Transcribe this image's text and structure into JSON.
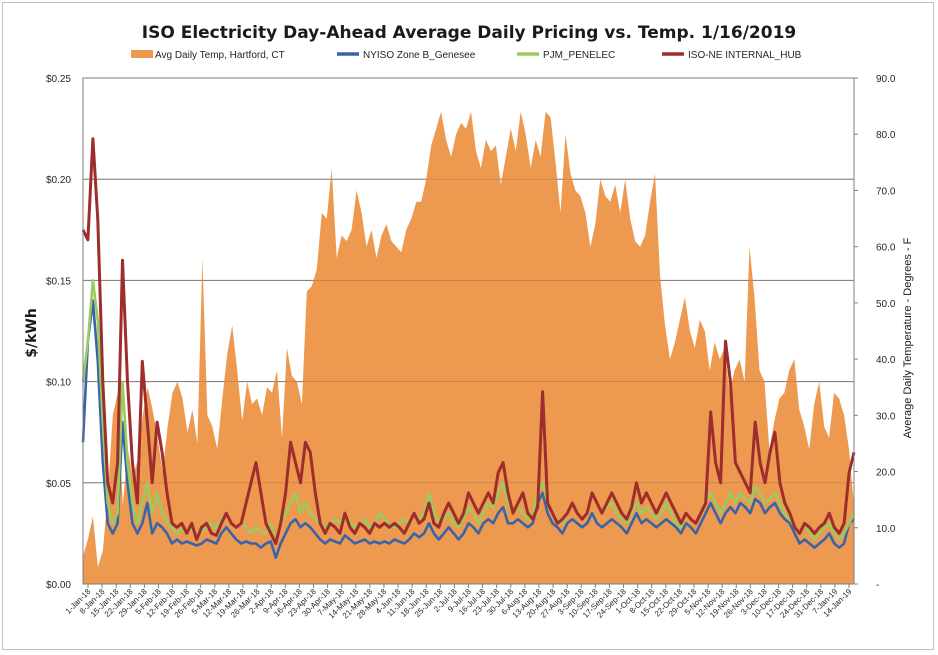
{
  "chart_data": {
    "type": "line",
    "title": "ISO Electricity Day-Ahead Average Daily Pricing vs. Temp. 1/16/2019",
    "ylabel": "$/kWh",
    "y2label": "Average Daily Temperature - Degrees - F",
    "ylim": [
      0,
      0.25
    ],
    "y2lim": [
      0,
      90
    ],
    "yticks": [
      "$0.00",
      "$0.05",
      "$0.10",
      "$0.15",
      "$0.20",
      "$0.25"
    ],
    "y2ticks": [
      "-",
      "10.0",
      "20.0",
      "30.0",
      "40.0",
      "50.0",
      "60.0",
      "70.0",
      "80.0",
      "90.0"
    ],
    "grid": true,
    "legend_position": "top",
    "x_tick_labels": [
      "1-Jan-18",
      "8-Jan-18",
      "15-Jan-18",
      "22-Jan-18",
      "29-Jan-18",
      "5-Feb-18",
      "12-Feb-18",
      "19-Feb-18",
      "26-Feb-18",
      "5-Mar-18",
      "12-Mar-18",
      "19-Mar-18",
      "26-Mar-18",
      "2-Apr-18",
      "9-Apr-18",
      "16-Apr-18",
      "23-Apr-18",
      "30-Apr-18",
      "7-May-18",
      "14-May-18",
      "21-May-18",
      "28-May-18",
      "4-Jun-18",
      "11-Jun-18",
      "18-Jun-18",
      "25-Jun-18",
      "2-Jul-18",
      "9-Jul-18",
      "16-Jul-18",
      "23-Jul-18",
      "30-Jul-18",
      "6-Aug-18",
      "13-Aug-18",
      "20-Aug-18",
      "27-Aug-18",
      "3-Sep-18",
      "10-Sep-18",
      "17-Sep-18",
      "24-Sep-18",
      "1-Oct-18",
      "8-Oct-18",
      "15-Oct-18",
      "22-Oct-18",
      "29-Oct-18",
      "5-Nov-18",
      "12-Nov-18",
      "19-Nov-18",
      "26-Nov-18",
      "3-Dec-18",
      "10-Dec-18",
      "17-Dec-18",
      "24-Dec-18",
      "31-Dec-18",
      "7-Jan-19",
      "14-Jan-19"
    ],
    "colors": {
      "temp": "#ED9A50",
      "nyiso": "#3A64A8",
      "pjm": "#9BCB5F",
      "isone": "#9E2D2D"
    },
    "series": [
      {
        "name": "Avg Daily Temp, Hartford, CT",
        "kind": "area",
        "axis": "right",
        "color_key": "temp",
        "values": [
          5,
          8,
          12,
          3,
          6,
          16,
          30,
          34,
          14,
          24,
          19,
          22,
          30,
          35,
          31,
          26,
          20,
          28,
          34,
          36,
          33,
          27,
          31,
          25,
          58,
          30,
          28,
          24,
          33,
          41,
          46,
          38,
          29,
          36,
          32,
          33,
          30,
          35,
          34,
          38,
          26,
          42,
          37,
          36,
          32,
          52,
          53,
          56,
          66,
          65,
          74,
          58,
          62,
          61,
          63,
          70,
          66,
          60,
          63,
          58,
          62,
          64,
          61,
          60,
          59,
          63,
          65,
          68,
          68,
          72,
          78,
          81,
          84,
          79,
          76,
          80,
          82,
          81,
          84,
          77,
          74,
          79,
          77,
          78,
          71,
          76,
          81,
          77,
          84,
          80,
          74,
          79,
          76,
          84,
          83,
          75,
          66,
          80,
          73,
          70,
          69,
          66,
          60,
          64,
          72,
          69,
          68,
          71,
          66,
          72,
          65,
          61,
          60,
          62,
          68,
          73,
          55,
          46,
          40,
          43,
          47,
          51,
          45,
          42,
          47,
          45,
          38,
          43,
          40,
          42,
          34,
          38,
          40,
          36,
          60,
          51,
          38,
          36,
          24,
          29,
          33,
          34,
          38,
          40,
          31,
          28,
          24,
          32,
          36,
          28,
          26,
          34,
          33,
          30,
          24,
          14
        ]
      },
      {
        "name": "NYISO Zone B_Genesee",
        "kind": "line",
        "axis": "left",
        "color_key": "nyiso",
        "values": [
          0.07,
          0.12,
          0.14,
          0.11,
          0.06,
          0.03,
          0.025,
          0.03,
          0.08,
          0.05,
          0.03,
          0.025,
          0.03,
          0.04,
          0.025,
          0.03,
          0.028,
          0.025,
          0.02,
          0.022,
          0.02,
          0.021,
          0.02,
          0.019,
          0.02,
          0.022,
          0.021,
          0.02,
          0.025,
          0.028,
          0.025,
          0.022,
          0.02,
          0.021,
          0.02,
          0.02,
          0.018,
          0.02,
          0.021,
          0.013,
          0.02,
          0.025,
          0.03,
          0.032,
          0.028,
          0.03,
          0.028,
          0.025,
          0.022,
          0.02,
          0.022,
          0.021,
          0.02,
          0.024,
          0.022,
          0.02,
          0.021,
          0.022,
          0.02,
          0.021,
          0.02,
          0.021,
          0.02,
          0.022,
          0.021,
          0.02,
          0.022,
          0.025,
          0.023,
          0.025,
          0.03,
          0.025,
          0.022,
          0.025,
          0.028,
          0.025,
          0.022,
          0.025,
          0.03,
          0.028,
          0.025,
          0.03,
          0.032,
          0.03,
          0.035,
          0.038,
          0.03,
          0.03,
          0.032,
          0.03,
          0.028,
          0.03,
          0.04,
          0.045,
          0.035,
          0.03,
          0.028,
          0.025,
          0.03,
          0.032,
          0.03,
          0.028,
          0.03,
          0.035,
          0.03,
          0.028,
          0.03,
          0.032,
          0.03,
          0.028,
          0.025,
          0.03,
          0.035,
          0.03,
          0.032,
          0.03,
          0.028,
          0.03,
          0.032,
          0.03,
          0.028,
          0.025,
          0.03,
          0.028,
          0.025,
          0.03,
          0.035,
          0.04,
          0.035,
          0.03,
          0.035,
          0.038,
          0.035,
          0.04,
          0.038,
          0.035,
          0.042,
          0.04,
          0.035,
          0.038,
          0.04,
          0.035,
          0.032,
          0.03,
          0.025,
          0.02,
          0.022,
          0.02,
          0.018,
          0.02,
          0.022,
          0.025,
          0.02,
          0.018,
          0.02,
          0.03,
          0.032
        ]
      },
      {
        "name": "PJM_PENELEC",
        "kind": "line",
        "axis": "left",
        "color_key": "pjm",
        "values": [
          0.1,
          0.12,
          0.15,
          0.13,
          0.08,
          0.04,
          0.03,
          0.035,
          0.1,
          0.06,
          0.04,
          0.03,
          0.04,
          0.05,
          0.035,
          0.045,
          0.035,
          0.03,
          0.028,
          0.025,
          0.027,
          0.025,
          0.028,
          0.025,
          0.026,
          0.028,
          0.03,
          0.027,
          0.032,
          0.035,
          0.03,
          0.028,
          0.03,
          0.028,
          0.025,
          0.028,
          0.026,
          0.025,
          0.03,
          0.02,
          0.03,
          0.035,
          0.04,
          0.045,
          0.035,
          0.04,
          0.035,
          0.032,
          0.03,
          0.028,
          0.03,
          0.032,
          0.03,
          0.035,
          0.03,
          0.028,
          0.03,
          0.032,
          0.028,
          0.03,
          0.035,
          0.032,
          0.03,
          0.028,
          0.03,
          0.032,
          0.03,
          0.035,
          0.032,
          0.035,
          0.045,
          0.035,
          0.03,
          0.032,
          0.035,
          0.03,
          0.028,
          0.032,
          0.038,
          0.035,
          0.03,
          0.035,
          0.04,
          0.038,
          0.045,
          0.05,
          0.04,
          0.035,
          0.038,
          0.035,
          0.032,
          0.035,
          0.045,
          0.05,
          0.04,
          0.035,
          0.032,
          0.03,
          0.035,
          0.04,
          0.035,
          0.032,
          0.035,
          0.045,
          0.04,
          0.035,
          0.038,
          0.04,
          0.035,
          0.032,
          0.03,
          0.035,
          0.04,
          0.035,
          0.038,
          0.035,
          0.032,
          0.035,
          0.04,
          0.035,
          0.03,
          0.028,
          0.035,
          0.032,
          0.03,
          0.035,
          0.04,
          0.045,
          0.04,
          0.035,
          0.04,
          0.045,
          0.04,
          0.045,
          0.042,
          0.04,
          0.048,
          0.045,
          0.04,
          0.042,
          0.045,
          0.04,
          0.035,
          0.032,
          0.028,
          0.025,
          0.03,
          0.025,
          0.022,
          0.025,
          0.028,
          0.03,
          0.025,
          0.022,
          0.025,
          0.03,
          0.035
        ]
      },
      {
        "name": "ISO-NE INTERNAL_HUB",
        "kind": "line",
        "axis": "left",
        "color_key": "isone",
        "values": [
          0.175,
          0.17,
          0.22,
          0.18,
          0.1,
          0.05,
          0.04,
          0.06,
          0.16,
          0.1,
          0.06,
          0.04,
          0.11,
          0.08,
          0.05,
          0.08,
          0.065,
          0.045,
          0.03,
          0.028,
          0.03,
          0.025,
          0.03,
          0.022,
          0.028,
          0.03,
          0.025,
          0.024,
          0.03,
          0.035,
          0.03,
          0.028,
          0.03,
          0.04,
          0.05,
          0.06,
          0.045,
          0.03,
          0.025,
          0.02,
          0.03,
          0.045,
          0.07,
          0.06,
          0.05,
          0.07,
          0.065,
          0.045,
          0.03,
          0.025,
          0.03,
          0.028,
          0.025,
          0.035,
          0.028,
          0.025,
          0.03,
          0.028,
          0.025,
          0.03,
          0.028,
          0.03,
          0.028,
          0.03,
          0.028,
          0.025,
          0.03,
          0.035,
          0.03,
          0.032,
          0.04,
          0.03,
          0.028,
          0.035,
          0.04,
          0.035,
          0.03,
          0.035,
          0.045,
          0.04,
          0.035,
          0.04,
          0.045,
          0.04,
          0.055,
          0.06,
          0.045,
          0.035,
          0.04,
          0.045,
          0.035,
          0.032,
          0.038,
          0.095,
          0.04,
          0.035,
          0.03,
          0.032,
          0.035,
          0.04,
          0.035,
          0.032,
          0.035,
          0.045,
          0.04,
          0.035,
          0.04,
          0.045,
          0.04,
          0.035,
          0.032,
          0.038,
          0.05,
          0.04,
          0.045,
          0.04,
          0.035,
          0.04,
          0.045,
          0.04,
          0.035,
          0.03,
          0.035,
          0.032,
          0.03,
          0.035,
          0.04,
          0.085,
          0.06,
          0.05,
          0.12,
          0.1,
          0.06,
          0.055,
          0.05,
          0.045,
          0.08,
          0.06,
          0.05,
          0.065,
          0.075,
          0.05,
          0.04,
          0.035,
          0.028,
          0.025,
          0.03,
          0.028,
          0.025,
          0.028,
          0.03,
          0.035,
          0.028,
          0.025,
          0.03,
          0.055,
          0.065
        ]
      }
    ]
  }
}
